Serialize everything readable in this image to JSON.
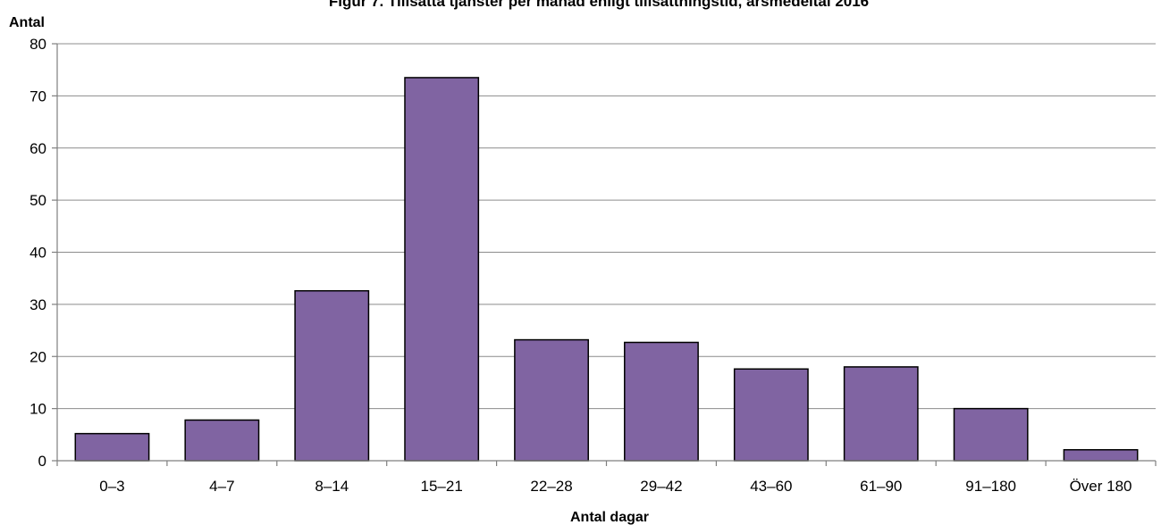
{
  "chart_data": {
    "type": "bar",
    "title": "Figur 7. Tillsatta tjänster per månad enligt tillsättningstid, årsmedeltal 2016",
    "xlabel": "Antal dagar",
    "ylabel": "Antal",
    "categories": [
      "0–3",
      "4–7",
      "8–14",
      "15–21",
      "22–28",
      "29–42",
      "43–60",
      "61–90",
      "91–180",
      "Över 180"
    ],
    "values": [
      5.2,
      7.8,
      32.6,
      73.5,
      23.2,
      22.7,
      17.6,
      18.0,
      10.0,
      2.1
    ],
    "ylim": [
      0,
      80
    ],
    "yticks": [
      0,
      10,
      20,
      30,
      40,
      50,
      60,
      70,
      80
    ],
    "grid": true,
    "legend": "none",
    "bar_color": "#8064a2"
  }
}
